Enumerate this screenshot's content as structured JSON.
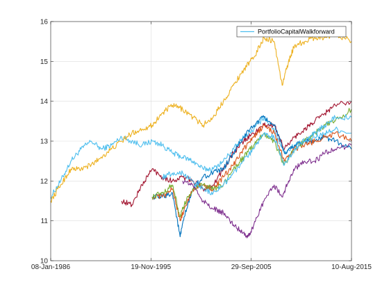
{
  "chart_data": {
    "type": "line",
    "title": "",
    "xlabel": "",
    "ylabel": "",
    "xlim": [
      "1986-01-08",
      "2015-08-10"
    ],
    "ylim": [
      10,
      16
    ],
    "x_ticks": [
      {
        "date": "1986-01-08",
        "label": "08-Jan-1986"
      },
      {
        "date": "1995-11-19",
        "label": "19-Nov-1995"
      },
      {
        "date": "2005-09-29",
        "label": "29-Sep-2005"
      },
      {
        "date": "2015-08-10",
        "label": "10-Aug-2015"
      }
    ],
    "y_ticks": [
      10,
      11,
      12,
      13,
      14,
      15,
      16
    ],
    "grid": true,
    "legend": {
      "position": "top-right",
      "entries": [
        "PortfolioCapitalWalkforward"
      ]
    },
    "series": [
      {
        "name": "PortfolioCapitalWalkforward",
        "color": "#4DBEEE",
        "points": [
          [
            "1986-01-08",
            11.6
          ],
          [
            "1987-01-01",
            12.0
          ],
          [
            "1988-01-01",
            12.5
          ],
          [
            "1989-01-01",
            12.8
          ],
          [
            "1990-01-01",
            13.0
          ],
          [
            "1991-01-01",
            12.8
          ],
          [
            "1992-01-01",
            12.9
          ],
          [
            "1993-01-01",
            13.1
          ],
          [
            "1994-01-01",
            13.0
          ],
          [
            "1995-01-01",
            12.9
          ],
          [
            "1996-01-01",
            13.0
          ],
          [
            "1997-01-01",
            12.9
          ],
          [
            "1998-01-01",
            12.7
          ],
          [
            "1999-01-01",
            12.6
          ],
          [
            "2000-01-01",
            12.5
          ],
          [
            "2001-01-01",
            12.3
          ],
          [
            "2002-01-01",
            12.3
          ],
          [
            "2003-01-01",
            12.5
          ],
          [
            "2004-01-01",
            12.8
          ],
          [
            "2005-01-01",
            13.1
          ],
          [
            "2006-01-01",
            13.3
          ],
          [
            "2007-01-01",
            13.6
          ],
          [
            "2008-01-01",
            13.3
          ],
          [
            "2009-01-01",
            12.7
          ],
          [
            "2010-01-01",
            12.9
          ],
          [
            "2011-01-01",
            13.0
          ],
          [
            "2012-01-01",
            13.1
          ],
          [
            "2013-01-01",
            13.2
          ],
          [
            "2014-01-01",
            13.3
          ],
          [
            "2015-08-10",
            13.2
          ]
        ]
      },
      {
        "color": "#EDB120",
        "points": [
          [
            "1986-01-08",
            11.5
          ],
          [
            "1987-01-01",
            11.9
          ],
          [
            "1988-01-01",
            12.3
          ],
          [
            "1989-01-01",
            12.3
          ],
          [
            "1990-01-01",
            12.4
          ],
          [
            "1991-01-01",
            12.6
          ],
          [
            "1992-01-01",
            12.8
          ],
          [
            "1993-01-01",
            13.0
          ],
          [
            "1994-01-01",
            13.2
          ],
          [
            "1995-01-01",
            13.3
          ],
          [
            "1996-01-01",
            13.4
          ],
          [
            "1997-01-01",
            13.7
          ],
          [
            "1998-01-01",
            13.9
          ],
          [
            "1999-01-01",
            13.8
          ],
          [
            "2000-01-01",
            13.6
          ],
          [
            "2001-01-01",
            13.4
          ],
          [
            "2002-01-01",
            13.6
          ],
          [
            "2003-01-01",
            14.0
          ],
          [
            "2004-01-01",
            14.4
          ],
          [
            "2005-01-01",
            14.8
          ],
          [
            "2006-01-01",
            15.1
          ],
          [
            "2007-01-01",
            15.6
          ],
          [
            "2008-01-01",
            15.5
          ],
          [
            "2008-10-15",
            14.4
          ],
          [
            "2009-06-01",
            15.0
          ],
          [
            "2010-01-01",
            15.4
          ],
          [
            "2011-01-01",
            15.5
          ],
          [
            "2012-01-01",
            15.6
          ],
          [
            "2013-01-01",
            15.6
          ],
          [
            "2014-01-01",
            15.7
          ],
          [
            "2015-08-10",
            15.5
          ]
        ]
      },
      {
        "color": "#A2142F",
        "points": [
          [
            "1993-01-01",
            11.5
          ],
          [
            "1994-01-01",
            11.4
          ],
          [
            "1995-01-01",
            11.9
          ],
          [
            "1996-01-01",
            12.3
          ],
          [
            "1997-01-01",
            12.1
          ],
          [
            "1998-01-01",
            12.0
          ],
          [
            "1999-01-01",
            12.1
          ],
          [
            "2000-01-01",
            12.0
          ],
          [
            "2001-01-01",
            11.8
          ],
          [
            "2002-01-01",
            11.9
          ],
          [
            "2003-01-01",
            12.3
          ],
          [
            "2004-01-01",
            12.7
          ],
          [
            "2005-01-01",
            13.0
          ],
          [
            "2006-01-01",
            13.2
          ],
          [
            "2007-01-01",
            13.4
          ],
          [
            "2008-01-01",
            13.4
          ],
          [
            "2009-01-01",
            12.8
          ],
          [
            "2010-01-01",
            13.1
          ],
          [
            "2011-01-01",
            13.3
          ],
          [
            "2012-01-01",
            13.5
          ],
          [
            "2013-01-01",
            13.7
          ],
          [
            "2014-01-01",
            13.9
          ],
          [
            "2015-08-10",
            14.0
          ]
        ]
      },
      {
        "color": "#0072BD",
        "points": [
          [
            "1996-01-01",
            11.6
          ],
          [
            "1997-01-01",
            11.6
          ],
          [
            "1998-01-01",
            11.7
          ],
          [
            "1998-10-01",
            10.6
          ],
          [
            "1999-03-01",
            11.1
          ],
          [
            "2000-01-01",
            11.8
          ],
          [
            "2001-01-01",
            12.1
          ],
          [
            "2002-01-01",
            12.2
          ],
          [
            "2003-01-01",
            12.3
          ],
          [
            "2004-01-01",
            12.7
          ],
          [
            "2005-01-01",
            13.1
          ],
          [
            "2006-01-01",
            13.4
          ],
          [
            "2007-01-01",
            13.6
          ],
          [
            "2008-01-01",
            13.4
          ],
          [
            "2009-01-01",
            12.7
          ],
          [
            "2010-01-01",
            12.9
          ],
          [
            "2011-01-01",
            13.0
          ],
          [
            "2012-01-01",
            13.0
          ],
          [
            "2013-01-01",
            13.1
          ],
          [
            "2014-01-01",
            13.0
          ],
          [
            "2015-08-10",
            12.8
          ]
        ]
      },
      {
        "color": "#D95319",
        "points": [
          [
            "1996-01-01",
            11.6
          ],
          [
            "1997-01-01",
            11.6
          ],
          [
            "1998-01-01",
            11.8
          ],
          [
            "1998-10-01",
            11.0
          ],
          [
            "1999-03-01",
            11.3
          ],
          [
            "2000-01-01",
            11.8
          ],
          [
            "2001-01-01",
            11.9
          ],
          [
            "2002-01-01",
            11.8
          ],
          [
            "2003-01-01",
            12.1
          ],
          [
            "2004-01-01",
            12.4
          ],
          [
            "2005-01-01",
            12.8
          ],
          [
            "2006-01-01",
            13.1
          ],
          [
            "2007-01-01",
            13.4
          ],
          [
            "2008-01-01",
            13.2
          ],
          [
            "2009-01-01",
            12.5
          ],
          [
            "2010-01-01",
            12.8
          ],
          [
            "2011-01-01",
            12.9
          ],
          [
            "2012-01-01",
            13.0
          ],
          [
            "2013-01-01",
            13.1
          ],
          [
            "2014-01-01",
            13.2
          ],
          [
            "2015-08-10",
            13.0
          ]
        ]
      },
      {
        "color": "#77AC30",
        "points": [
          [
            "1996-01-01",
            11.6
          ],
          [
            "1997-01-01",
            11.7
          ],
          [
            "1998-01-01",
            11.9
          ],
          [
            "1998-10-01",
            11.1
          ],
          [
            "1999-03-01",
            11.4
          ],
          [
            "2000-01-01",
            11.8
          ],
          [
            "2001-01-01",
            11.9
          ],
          [
            "2002-01-01",
            11.8
          ],
          [
            "2003-01-01",
            11.9
          ],
          [
            "2004-01-01",
            12.3
          ],
          [
            "2005-01-01",
            12.6
          ],
          [
            "2006-01-01",
            12.9
          ],
          [
            "2007-01-01",
            13.2
          ],
          [
            "2008-01-01",
            13.0
          ],
          [
            "2009-01-01",
            12.4
          ],
          [
            "2010-01-01",
            12.8
          ],
          [
            "2011-01-01",
            13.0
          ],
          [
            "2012-01-01",
            13.2
          ],
          [
            "2013-01-01",
            13.4
          ],
          [
            "2014-01-01",
            13.5
          ],
          [
            "2015-08-10",
            13.8
          ]
        ]
      },
      {
        "color": "#7E2F8E",
        "points": [
          [
            "1999-01-01",
            12.0
          ],
          [
            "2000-01-01",
            11.9
          ],
          [
            "2001-01-01",
            11.5
          ],
          [
            "2002-01-01",
            11.3
          ],
          [
            "2003-01-01",
            11.2
          ],
          [
            "2004-01-01",
            10.9
          ],
          [
            "2005-01-01",
            10.7
          ],
          [
            "2005-06-01",
            10.6
          ],
          [
            "2006-01-01",
            10.9
          ],
          [
            "2007-01-01",
            11.5
          ],
          [
            "2008-01-01",
            11.9
          ],
          [
            "2008-10-15",
            11.6
          ],
          [
            "2009-06-01",
            12.0
          ],
          [
            "2010-01-01",
            12.3
          ],
          [
            "2011-01-01",
            12.5
          ],
          [
            "2012-01-01",
            12.5
          ],
          [
            "2013-01-01",
            12.7
          ],
          [
            "2014-01-01",
            12.8
          ],
          [
            "2015-08-10",
            12.9
          ]
        ]
      },
      {
        "color": "#4DBEEE",
        "points": [
          [
            "1997-01-01",
            12.1
          ],
          [
            "1998-01-01",
            12.2
          ],
          [
            "1999-01-01",
            12.2
          ],
          [
            "2000-01-01",
            12.0
          ],
          [
            "2001-01-01",
            11.8
          ],
          [
            "2002-01-01",
            11.7
          ],
          [
            "2003-01-01",
            11.9
          ],
          [
            "2004-01-01",
            12.2
          ],
          [
            "2005-01-01",
            12.5
          ],
          [
            "2006-01-01",
            12.8
          ],
          [
            "2007-01-01",
            13.2
          ],
          [
            "2008-01-01",
            13.1
          ],
          [
            "2009-01-01",
            12.4
          ],
          [
            "2010-01-01",
            12.8
          ],
          [
            "2011-01-01",
            13.0
          ],
          [
            "2012-01-01",
            13.2
          ],
          [
            "2013-01-01",
            13.4
          ],
          [
            "2014-01-01",
            13.6
          ],
          [
            "2015-08-10",
            13.6
          ]
        ]
      }
    ]
  }
}
